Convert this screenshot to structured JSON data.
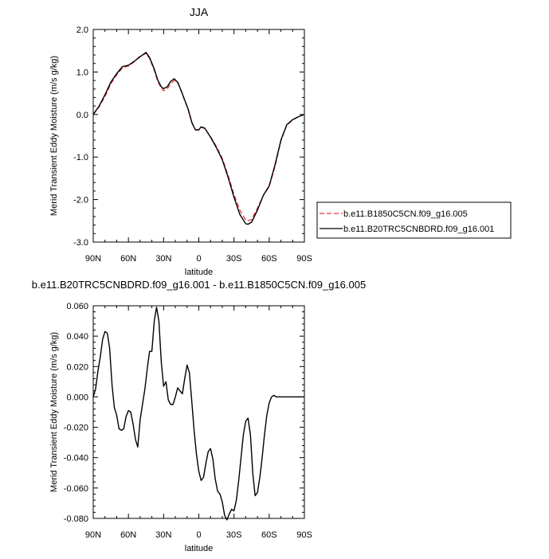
{
  "chart_data": [
    {
      "type": "line",
      "title": "JJA",
      "xlabel": "latitude",
      "ylabel": "Merid Transient Eddy Moisture (m/s g/kg)",
      "xlim": [
        90,
        -90
      ],
      "ylim": [
        -3.0,
        2.0
      ],
      "x_ticks": [
        90,
        60,
        30,
        0,
        -30,
        -60,
        -90
      ],
      "x_tick_labels": [
        "90N",
        "60N",
        "30N",
        "0",
        "30S",
        "60S",
        "90S"
      ],
      "y_ticks": [
        2.0,
        1.0,
        0.0,
        -1.0,
        -2.0,
        -3.0
      ],
      "y_tick_labels": [
        "2.0",
        "1.0",
        "0.0",
        "-1.0",
        "-2.0",
        "-3.0"
      ],
      "legend": "right",
      "x": [
        90,
        85,
        80,
        75,
        70,
        65,
        60,
        55,
        50,
        45,
        42,
        38,
        35,
        32,
        30,
        27,
        24,
        21,
        18,
        15,
        12,
        9,
        6,
        3,
        0,
        -2,
        -5,
        -10,
        -15,
        -20,
        -25,
        -30,
        -35,
        -40,
        -42,
        -45,
        -50,
        -55,
        -60,
        -65,
        -70,
        -75,
        -80,
        -85,
        -90
      ],
      "series": [
        {
          "name": "b.e11.B1850C5CN.f09_g16.005",
          "color": "#e8333f",
          "dashed": true,
          "values": [
            0.0,
            0.18,
            0.42,
            0.72,
            0.93,
            1.1,
            1.14,
            1.24,
            1.38,
            1.43,
            1.32,
            1.04,
            0.78,
            0.62,
            0.56,
            0.6,
            0.72,
            0.8,
            0.75,
            0.55,
            0.33,
            0.1,
            -0.2,
            -0.35,
            -0.37,
            -0.3,
            -0.33,
            -0.52,
            -0.75,
            -1.03,
            -1.43,
            -1.88,
            -2.25,
            -2.48,
            -2.5,
            -2.47,
            -2.2,
            -1.9,
            -1.7,
            -1.22,
            -0.62,
            -0.25,
            -0.13,
            -0.05,
            0.0
          ]
        },
        {
          "name": "b.e11.B20TRC5CNBDRD.f09_g16.001",
          "color": "#000000",
          "dashed": false,
          "values": [
            0.0,
            0.2,
            0.46,
            0.76,
            0.96,
            1.13,
            1.16,
            1.25,
            1.36,
            1.46,
            1.34,
            1.07,
            0.81,
            0.65,
            0.61,
            0.65,
            0.78,
            0.84,
            0.76,
            0.56,
            0.34,
            0.12,
            -0.18,
            -0.36,
            -0.36,
            -0.29,
            -0.32,
            -0.53,
            -0.78,
            -1.06,
            -1.48,
            -1.95,
            -2.35,
            -2.57,
            -2.58,
            -2.53,
            -2.25,
            -1.9,
            -1.68,
            -1.18,
            -0.6,
            -0.24,
            -0.12,
            -0.05,
            0.0
          ]
        }
      ]
    },
    {
      "type": "line",
      "title": "b.e11.B20TRC5CNBDRD.f09_g16.001 - b.e11.B1850C5CN.f09_g16.005",
      "xlabel": "latitude",
      "ylabel": "Merid Transient Eddy Moisture (m/s g/kg)",
      "xlim": [
        90,
        -90
      ],
      "ylim": [
        -0.08,
        0.06
      ],
      "x_ticks": [
        90,
        60,
        30,
        0,
        -30,
        -60,
        -90
      ],
      "x_tick_labels": [
        "90N",
        "60N",
        "30N",
        "0",
        "30S",
        "60S",
        "90S"
      ],
      "y_ticks": [
        0.06,
        0.04,
        0.02,
        0.0,
        -0.02,
        -0.04,
        -0.06,
        -0.08
      ],
      "y_tick_labels": [
        "0.060",
        "0.040",
        "0.020",
        "0.000",
        "-0.020",
        "-0.040",
        "-0.060",
        "-0.080"
      ],
      "x": [
        90,
        88,
        86,
        84,
        82,
        80,
        78,
        76,
        74,
        72,
        70,
        68,
        66,
        64,
        62,
        60,
        58,
        56,
        54,
        52,
        50,
        48,
        46,
        44,
        42,
        40,
        38,
        36,
        34,
        32,
        30,
        28,
        26,
        24,
        22,
        20,
        18,
        16,
        14,
        12,
        10,
        8,
        6,
        4,
        2,
        0,
        -2,
        -4,
        -6,
        -8,
        -10,
        -12,
        -14,
        -16,
        -18,
        -20,
        -22,
        -24,
        -26,
        -28,
        -30,
        -32,
        -34,
        -36,
        -38,
        -40,
        -42,
        -44,
        -46,
        -48,
        -50,
        -52,
        -54,
        -56,
        -58,
        -60,
        -62,
        -64,
        -66,
        -68,
        -70,
        -72,
        -74,
        -76,
        -78,
        -80,
        -82,
        -84,
        -86,
        -88,
        -90
      ],
      "series": [
        {
          "name": "",
          "color": "#000000",
          "dashed": false,
          "values": [
            0.0,
            0.005,
            0.017,
            0.026,
            0.038,
            0.043,
            0.042,
            0.032,
            0.008,
            -0.007,
            -0.012,
            -0.021,
            -0.022,
            -0.021,
            -0.013,
            -0.009,
            -0.01,
            -0.018,
            -0.028,
            -0.033,
            -0.015,
            -0.005,
            0.005,
            0.018,
            0.03,
            0.03,
            0.05,
            0.059,
            0.05,
            0.023,
            0.007,
            0.01,
            -0.002,
            -0.005,
            -0.005,
            0.0,
            0.006,
            0.004,
            0.002,
            0.012,
            0.021,
            0.016,
            -0.003,
            -0.022,
            -0.038,
            -0.049,
            -0.055,
            -0.053,
            -0.044,
            -0.036,
            -0.034,
            -0.041,
            -0.054,
            -0.062,
            -0.064,
            -0.069,
            -0.078,
            -0.081,
            -0.077,
            -0.074,
            -0.075,
            -0.068,
            -0.055,
            -0.04,
            -0.025,
            -0.016,
            -0.014,
            -0.025,
            -0.05,
            -0.065,
            -0.063,
            -0.053,
            -0.04,
            -0.025,
            -0.012,
            -0.004,
            0.0,
            0.001,
            0.0,
            0.0,
            0.0,
            0.0,
            0.0,
            0.0,
            0.0,
            0.0,
            0.0,
            0.0,
            0.0,
            0.0,
            0.0
          ]
        }
      ]
    }
  ]
}
